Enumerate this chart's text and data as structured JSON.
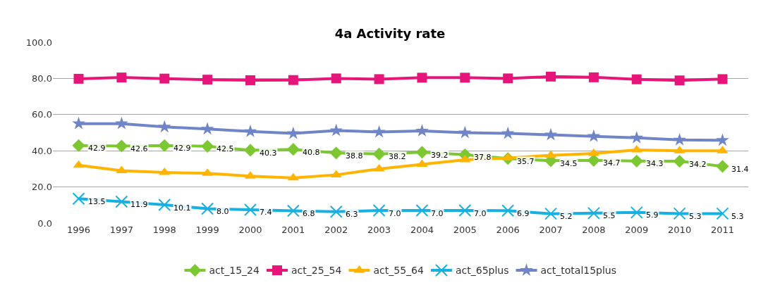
{
  "chart_data": {
    "type": "line",
    "title": "4a Activity rate",
    "categories": [
      "1996",
      "1997",
      "1998",
      "1999",
      "2000",
      "2001",
      "2002",
      "2003",
      "2004",
      "2005",
      "2006",
      "2007",
      "2008",
      "2009",
      "2010",
      "2011"
    ],
    "ylim": [
      0,
      100
    ],
    "yticks": [
      {
        "value": 0,
        "label": "0.0"
      },
      {
        "value": 20,
        "label": "20.0"
      },
      {
        "value": 40,
        "label": "40.0"
      },
      {
        "value": 60,
        "label": "60.0"
      },
      {
        "value": 80,
        "label": "80.0"
      },
      {
        "value": 100,
        "label": "100.0"
      }
    ],
    "grid": "y",
    "legend": "bottom",
    "line_style": "solid",
    "series": [
      {
        "name": "act_15_24",
        "color": "#7dc832",
        "marker": "diamond",
        "values": [
          42.9,
          42.6,
          42.9,
          42.5,
          40.3,
          40.8,
          38.8,
          38.2,
          39.2,
          37.8,
          35.7,
          34.5,
          34.7,
          34.3,
          34.2,
          31.4
        ],
        "value_labels": [
          "42.9",
          "42.6",
          "42.9",
          "42.5",
          "40.3",
          "40.8",
          "38.8",
          "38.2",
          "39.2",
          "37.8",
          "35.7",
          "34.5",
          "34.7",
          "34.3",
          "34.2",
          "31.4"
        ]
      },
      {
        "name": "act_25_54",
        "color": "#e6157a",
        "marker": "square",
        "values": [
          79.8,
          80.5,
          79.9,
          79.3,
          79.0,
          79.1,
          80.0,
          79.6,
          80.4,
          80.4,
          80.0,
          81.0,
          80.6,
          79.5,
          78.9,
          79.6
        ]
      },
      {
        "name": "act_55_64",
        "color": "#ffb400",
        "marker": "triangle",
        "values": [
          32.0,
          29.0,
          28.0,
          27.5,
          26.0,
          25.0,
          26.7,
          30.0,
          32.5,
          35.0,
          36.0,
          37.5,
          38.5,
          40.5,
          40.0,
          40.0
        ]
      },
      {
        "name": "act_65plus",
        "color": "#17b0e0",
        "marker": "cross",
        "values": [
          13.5,
          11.9,
          10.1,
          8.0,
          7.4,
          6.8,
          6.3,
          7.0,
          7.0,
          7.0,
          6.9,
          5.2,
          5.5,
          5.9,
          5.3,
          5.3
        ],
        "value_labels": [
          "13.5",
          "11.9",
          "10.1",
          "8.0",
          "7.4",
          "6.8",
          "6.3",
          "7.0",
          "7.0",
          "7.0",
          "6.9",
          "5.2",
          "5.5",
          "5.9",
          "5.3",
          "5.3"
        ]
      },
      {
        "name": "act_total15plus",
        "color": "#6f85c8",
        "marker": "star",
        "values": [
          55.0,
          55.0,
          53.2,
          52.0,
          50.7,
          49.6,
          51.2,
          50.4,
          51.0,
          50.0,
          49.6,
          48.8,
          48.0,
          47.2,
          46.0,
          45.8
        ]
      }
    ]
  }
}
